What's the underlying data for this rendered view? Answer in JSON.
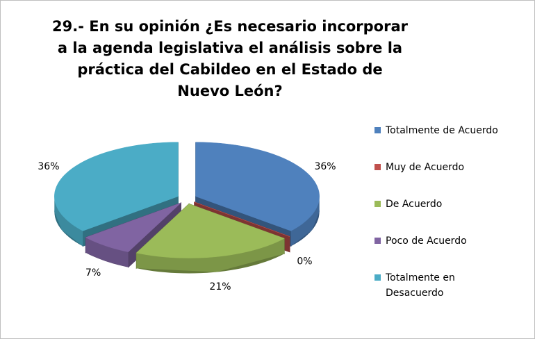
{
  "chart_data": {
    "type": "pie3d",
    "title": "29.- En su opinión ¿Es necesario incorporar a la agenda legislativa el análisis sobre la práctica del Cabildeo en el Estado de Nuevo León?",
    "categories": [
      "Totalmente de Acuerdo",
      "Muy de Acuerdo",
      "De Acuerdo",
      "Poco de Acuerdo",
      "Totalmente en Desacuerdo"
    ],
    "values": [
      36,
      0,
      21,
      7,
      36
    ],
    "value_labels": [
      "36%",
      "0%",
      "21%",
      "7%",
      "36%"
    ],
    "colors": [
      "#4f81bd",
      "#c0504d",
      "#9bbb59",
      "#8064a2",
      "#4bacc6"
    ],
    "legend": "right"
  }
}
